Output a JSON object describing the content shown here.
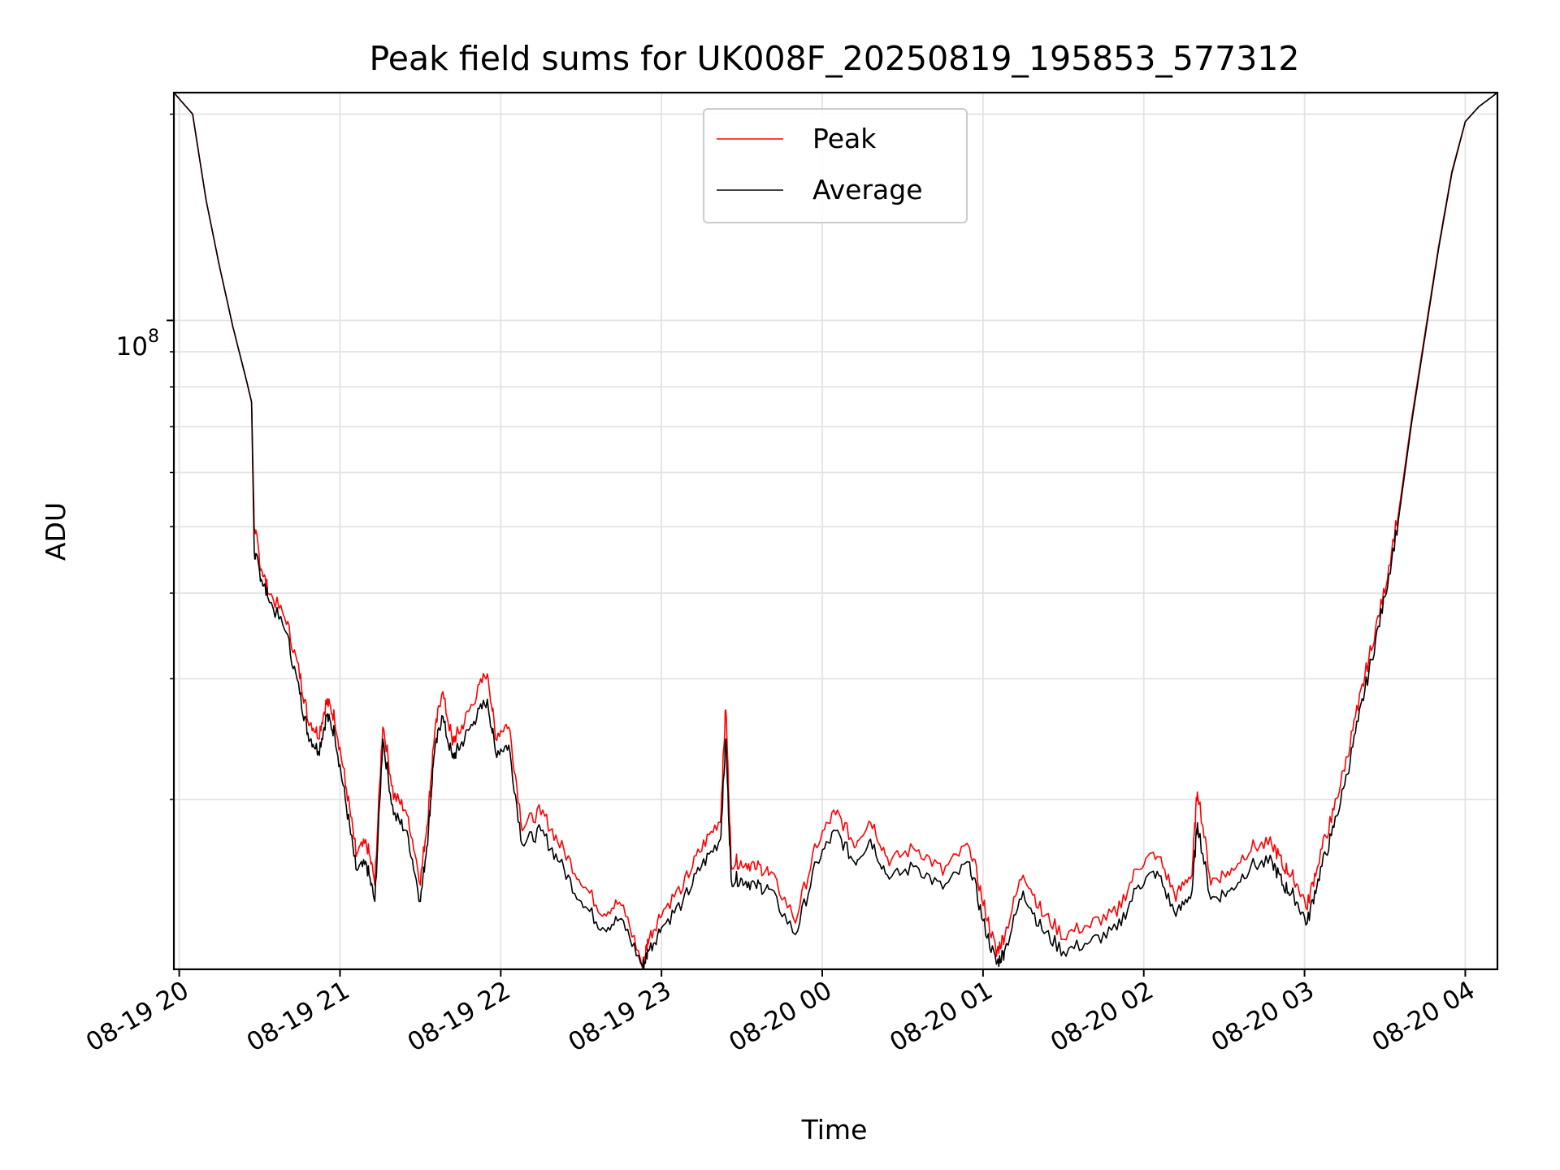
{
  "chart_data": {
    "type": "line",
    "title": "Peak field sums for UK008F_20250819_195853_577312",
    "xlabel": "Time",
    "ylabel": "ADU",
    "y_scale": "log",
    "ylim": [
      11300000,
      215000000
    ],
    "xlim": [
      "2025-08-19 19:58",
      "2025-08-20 04:12"
    ],
    "x_ticks": [
      "08-19 20",
      "08-19 21",
      "08-19 22",
      "08-19 23",
      "08-20 00",
      "08-20 01",
      "08-20 02",
      "08-20 03",
      "08-20 04"
    ],
    "y_tick_label": {
      "base": "10",
      "exponent": "8"
    },
    "grid": true,
    "legend_position": "top-center",
    "x": [
      "2025-08-19 19:58",
      "2025-08-19 20:05",
      "2025-08-19 20:10",
      "2025-08-19 20:15",
      "2025-08-19 20:20",
      "2025-08-19 20:25",
      "2025-08-19 20:27",
      "2025-08-19 20:28",
      "2025-08-19 20:30",
      "2025-08-19 20:33",
      "2025-08-19 20:40",
      "2025-08-19 20:45",
      "2025-08-19 20:48",
      "2025-08-19 20:52",
      "2025-08-19 20:55",
      "2025-08-19 20:58",
      "2025-08-19 21:02",
      "2025-08-19 21:06",
      "2025-08-19 21:10",
      "2025-08-19 21:13",
      "2025-08-19 21:16",
      "2025-08-19 21:20",
      "2025-08-19 21:25",
      "2025-08-19 21:30",
      "2025-08-19 21:33",
      "2025-08-19 21:35",
      "2025-08-19 21:38",
      "2025-08-19 21:42",
      "2025-08-19 21:45",
      "2025-08-19 21:50",
      "2025-08-19 21:55",
      "2025-08-19 21:58",
      "2025-08-19 22:03",
      "2025-08-19 22:08",
      "2025-08-19 22:15",
      "2025-08-19 22:22",
      "2025-08-19 22:30",
      "2025-08-19 22:38",
      "2025-08-19 22:45",
      "2025-08-19 22:53",
      "2025-08-19 22:55",
      "2025-08-19 23:00",
      "2025-08-19 23:08",
      "2025-08-19 23:15",
      "2025-08-19 23:22",
      "2025-08-19 23:24",
      "2025-08-19 23:26",
      "2025-08-19 23:30",
      "2025-08-19 23:35",
      "2025-08-19 23:40",
      "2025-08-19 23:50",
      "2025-08-19 23:58",
      "2025-08-20 00:05",
      "2025-08-20 00:12",
      "2025-08-20 00:18",
      "2025-08-20 00:25",
      "2025-08-20 00:35",
      "2025-08-20 00:45",
      "2025-08-20 00:55",
      "2025-08-20 01:00",
      "2025-08-20 01:05",
      "2025-08-20 01:08",
      "2025-08-20 01:15",
      "2025-08-20 01:22",
      "2025-08-20 01:30",
      "2025-08-20 01:40",
      "2025-08-20 01:50",
      "2025-08-20 01:58",
      "2025-08-20 02:05",
      "2025-08-20 02:12",
      "2025-08-20 02:18",
      "2025-08-20 02:20",
      "2025-08-20 02:25",
      "2025-08-20 02:32",
      "2025-08-20 02:40",
      "2025-08-20 02:48",
      "2025-08-20 02:52",
      "2025-08-20 02:56",
      "2025-08-20 03:01",
      "2025-08-20 03:05",
      "2025-08-20 03:10",
      "2025-08-20 03:15",
      "2025-08-20 03:20",
      "2025-08-20 03:25",
      "2025-08-20 03:30",
      "2025-08-20 03:35",
      "2025-08-20 03:40",
      "2025-08-20 03:45",
      "2025-08-20 03:50",
      "2025-08-20 03:55",
      "2025-08-20 04:00",
      "2025-08-20 04:05",
      "2025-08-20 04:12"
    ],
    "series": [
      {
        "name": "Peak",
        "color": "#ff0000",
        "values": [
          215000000,
          200000000,
          150000000,
          120000000,
          98000000,
          82000000,
          76000000,
          50000000,
          44000000,
          40000000,
          36000000,
          30000000,
          26000000,
          24500000,
          27500000,
          26000000,
          21000000,
          16500000,
          17000000,
          15000000,
          25500000,
          20000000,
          19000000,
          15000000,
          19000000,
          24000000,
          28500000,
          24000000,
          25000000,
          27500000,
          30500000,
          24500000,
          25500000,
          18000000,
          19000000,
          17000000,
          15000000,
          13500000,
          14000000,
          11300000,
          12300000,
          13500000,
          14800000,
          16800000,
          18500000,
          27000000,
          16000000,
          16000000,
          15800000,
          15500000,
          13200000,
          17000000,
          19000000,
          17000000,
          18500000,
          16000000,
          16800000,
          15500000,
          17000000,
          14000000,
          11800000,
          12500000,
          15500000,
          13500000,
          12500000,
          13000000,
          13500000,
          15800000,
          16500000,
          14200000,
          15500000,
          20500000,
          15000000,
          15500000,
          16800000,
          17000000,
          15800000,
          15200000,
          13800000,
          16000000,
          18500000,
          22000000,
          27000000,
          33000000,
          40000000,
          52000000,
          72000000,
          96000000,
          128000000,
          165000000,
          195000000,
          205000000,
          215000000
        ]
      },
      {
        "name": "Average",
        "color": "#000000",
        "values": [
          215000000,
          200000000,
          150000000,
          120000000,
          98000000,
          82000000,
          76000000,
          46000000,
          43000000,
          39500000,
          35000000,
          28500000,
          25000000,
          23500000,
          26500000,
          25000000,
          20000000,
          15800000,
          16000000,
          14200000,
          24500000,
          19000000,
          18000000,
          14200000,
          18000000,
          23000000,
          26500000,
          23000000,
          24000000,
          26000000,
          28000000,
          23500000,
          24000000,
          17200000,
          18000000,
          16200000,
          14200000,
          13000000,
          13400000,
          11400000,
          12000000,
          13000000,
          14200000,
          16000000,
          17500000,
          24500000,
          15300000,
          15300000,
          15000000,
          14800000,
          12700000,
          16200000,
          18000000,
          16200000,
          17500000,
          15300000,
          16000000,
          14800000,
          16200000,
          13300000,
          11500000,
          12000000,
          14700000,
          12900000,
          12000000,
          12400000,
          12900000,
          15000000,
          15700000,
          13500000,
          14700000,
          18500000,
          14300000,
          14700000,
          16000000,
          16200000,
          15000000,
          14500000,
          13200000,
          15300000,
          17700000,
          21000000,
          26000000,
          32000000,
          39500000,
          51000000,
          71000000,
          95000000,
          127000000,
          164000000,
          195000000,
          205000000,
          215000000
        ]
      }
    ]
  }
}
